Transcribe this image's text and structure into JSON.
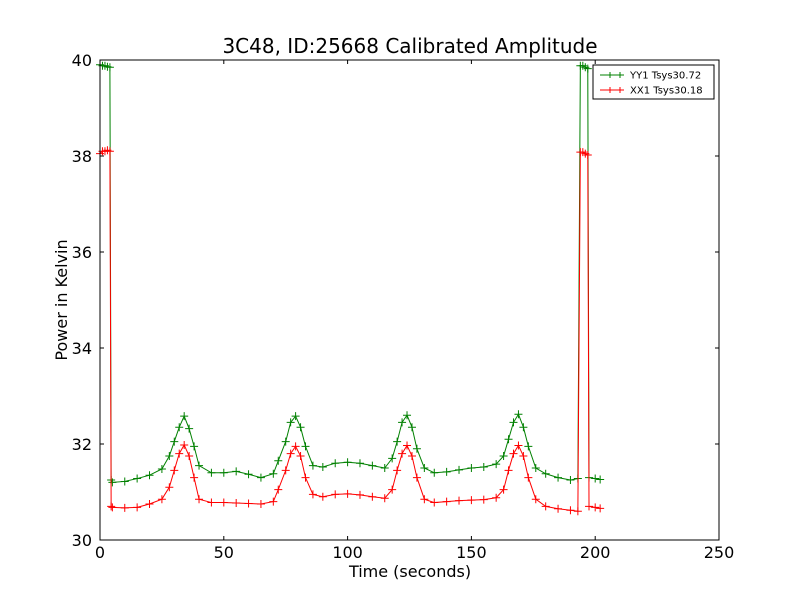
{
  "chart_data": {
    "type": "line",
    "title": "3C48, ID:25668 Calibrated Amplitude",
    "xlabel": "Time (seconds)",
    "ylabel": "Power in Kelvin",
    "xlim": [
      0,
      250
    ],
    "ylim": [
      30,
      40
    ],
    "x_ticks": [
      0,
      50,
      100,
      150,
      200,
      250
    ],
    "y_ticks": [
      30,
      32,
      34,
      36,
      38,
      40
    ],
    "x_tick_labels": [
      "0",
      "50",
      "100",
      "150",
      "200",
      "250"
    ],
    "y_tick_labels": [
      "30",
      "32",
      "34",
      "36",
      "38",
      "40"
    ],
    "grid": false,
    "legend_position": "top-right",
    "marker": "plus",
    "series": [
      {
        "name": "YY1 Tsys30.72",
        "color": "#008000",
        "points": [
          [
            0,
            39.9
          ],
          [
            1,
            39.88
          ],
          [
            2,
            39.88
          ],
          [
            3,
            39.86
          ],
          [
            4,
            39.85
          ],
          [
            4.5,
            31.25
          ],
          [
            5,
            31.2
          ],
          [
            10,
            31.22
          ],
          [
            15,
            31.28
          ],
          [
            20,
            31.35
          ],
          [
            25,
            31.48
          ],
          [
            28,
            31.75
          ],
          [
            30,
            32.05
          ],
          [
            32,
            32.35
          ],
          [
            34,
            32.58
          ],
          [
            36,
            32.32
          ],
          [
            38,
            31.95
          ],
          [
            40,
            31.55
          ],
          [
            45,
            31.4
          ],
          [
            50,
            31.4
          ],
          [
            55,
            31.43
          ],
          [
            60,
            31.37
          ],
          [
            65,
            31.3
          ],
          [
            70,
            31.38
          ],
          [
            72,
            31.65
          ],
          [
            75,
            32.05
          ],
          [
            77,
            32.45
          ],
          [
            79,
            32.58
          ],
          [
            81,
            32.35
          ],
          [
            83,
            31.95
          ],
          [
            86,
            31.55
          ],
          [
            90,
            31.52
          ],
          [
            95,
            31.6
          ],
          [
            100,
            31.62
          ],
          [
            105,
            31.6
          ],
          [
            110,
            31.55
          ],
          [
            115,
            31.5
          ],
          [
            118,
            31.7
          ],
          [
            120,
            32.05
          ],
          [
            122,
            32.45
          ],
          [
            124,
            32.6
          ],
          [
            126,
            32.35
          ],
          [
            128,
            31.9
          ],
          [
            131,
            31.5
          ],
          [
            135,
            31.4
          ],
          [
            140,
            31.42
          ],
          [
            145,
            31.46
          ],
          [
            150,
            31.5
          ],
          [
            155,
            31.52
          ],
          [
            160,
            31.58
          ],
          [
            163,
            31.75
          ],
          [
            165,
            32.1
          ],
          [
            167,
            32.45
          ],
          [
            169,
            32.62
          ],
          [
            171,
            32.35
          ],
          [
            173,
            31.95
          ],
          [
            176,
            31.5
          ],
          [
            180,
            31.38
          ],
          [
            185,
            31.3
          ],
          [
            190,
            31.25
          ],
          [
            193,
            31.28
          ],
          [
            194,
            39.88
          ],
          [
            195,
            39.88
          ],
          [
            196,
            39.85
          ],
          [
            197,
            39.82
          ],
          [
            197.5,
            31.3
          ],
          [
            200,
            31.28
          ],
          [
            202,
            31.26
          ]
        ]
      },
      {
        "name": "XX1 Tsys30.18",
        "color": "#ff0000",
        "points": [
          [
            0,
            38.05
          ],
          [
            1,
            38.1
          ],
          [
            2,
            38.1
          ],
          [
            3,
            38.12
          ],
          [
            4,
            38.1
          ],
          [
            4.5,
            30.7
          ],
          [
            5,
            30.68
          ],
          [
            10,
            30.67
          ],
          [
            15,
            30.68
          ],
          [
            20,
            30.75
          ],
          [
            25,
            30.85
          ],
          [
            28,
            31.1
          ],
          [
            30,
            31.45
          ],
          [
            32,
            31.8
          ],
          [
            34,
            31.98
          ],
          [
            36,
            31.75
          ],
          [
            38,
            31.3
          ],
          [
            40,
            30.85
          ],
          [
            45,
            30.78
          ],
          [
            50,
            30.78
          ],
          [
            55,
            30.77
          ],
          [
            60,
            30.76
          ],
          [
            65,
            30.75
          ],
          [
            70,
            30.8
          ],
          [
            72,
            31.05
          ],
          [
            75,
            31.45
          ],
          [
            77,
            31.8
          ],
          [
            79,
            31.95
          ],
          [
            81,
            31.75
          ],
          [
            83,
            31.3
          ],
          [
            86,
            30.95
          ],
          [
            90,
            30.9
          ],
          [
            95,
            30.95
          ],
          [
            100,
            30.96
          ],
          [
            105,
            30.94
          ],
          [
            110,
            30.9
          ],
          [
            115,
            30.87
          ],
          [
            118,
            31.05
          ],
          [
            120,
            31.45
          ],
          [
            122,
            31.8
          ],
          [
            124,
            31.97
          ],
          [
            126,
            31.75
          ],
          [
            128,
            31.3
          ],
          [
            131,
            30.85
          ],
          [
            135,
            30.78
          ],
          [
            140,
            30.8
          ],
          [
            145,
            30.82
          ],
          [
            150,
            30.83
          ],
          [
            155,
            30.84
          ],
          [
            160,
            30.88
          ],
          [
            163,
            31.05
          ],
          [
            165,
            31.45
          ],
          [
            167,
            31.8
          ],
          [
            169,
            31.97
          ],
          [
            171,
            31.75
          ],
          [
            173,
            31.3
          ],
          [
            176,
            30.85
          ],
          [
            180,
            30.7
          ],
          [
            185,
            30.65
          ],
          [
            190,
            30.62
          ],
          [
            193,
            30.6
          ],
          [
            194,
            38.08
          ],
          [
            195,
            38.08
          ],
          [
            196,
            38.05
          ],
          [
            197,
            38.02
          ],
          [
            197.5,
            30.7
          ],
          [
            200,
            30.68
          ],
          [
            202,
            30.66
          ]
        ]
      }
    ]
  }
}
